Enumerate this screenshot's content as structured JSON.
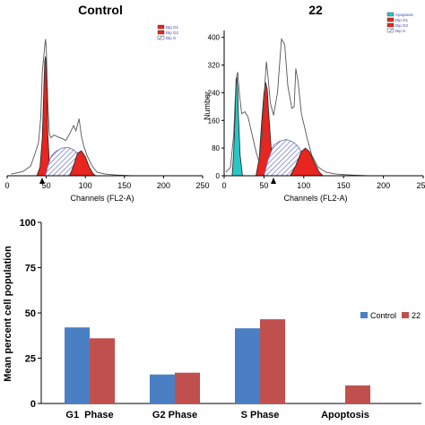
{
  "chart_data": [
    {
      "type": "area",
      "title": "Control",
      "xlabel": "Channels (FL2-A)",
      "ylabel": "",
      "xlim": [
        0,
        250
      ],
      "ylim": [
        0,
        420
      ],
      "x_ticks": [
        "0",
        "50",
        "100",
        "150",
        "200",
        "250"
      ],
      "y_ticks": [],
      "legend": {
        "entries": [
          "Dip G1",
          "Dip G2",
          "Dip S"
        ],
        "position": "top-right"
      },
      "series": [
        {
          "name": "Dip G1",
          "color": "#e8251f",
          "x": [
            38,
            42,
            45,
            47,
            48,
            49,
            50,
            51,
            52,
            54,
            57,
            61
          ],
          "y": [
            0,
            25,
            110,
            260,
            330,
            345,
            320,
            230,
            120,
            35,
            8,
            0
          ]
        },
        {
          "name": "Dip S",
          "color": "#9fa7d6",
          "pattern": "hatch",
          "x": [
            49,
            52,
            56,
            62,
            70,
            78,
            85,
            92,
            98,
            103
          ],
          "y": [
            0,
            28,
            55,
            70,
            80,
            82,
            75,
            60,
            32,
            0
          ]
        },
        {
          "name": "Dip G2",
          "color": "#e8251f",
          "x": [
            80,
            85,
            90,
            95,
            100,
            105,
            110,
            113
          ],
          "y": [
            0,
            30,
            65,
            72,
            55,
            25,
            6,
            0
          ]
        }
      ],
      "histogram": {
        "color": "#555555",
        "x": [
          5,
          20,
          30,
          35,
          40,
          43,
          45,
          47,
          49,
          50,
          52,
          54,
          56,
          60,
          65,
          70,
          75,
          80,
          85,
          88,
          92,
          95,
          98,
          102,
          108,
          115,
          125,
          140,
          160
        ],
        "y": [
          5,
          12,
          28,
          60,
          95,
          170,
          300,
          350,
          395,
          370,
          210,
          120,
          110,
          118,
          112,
          108,
          102,
          122,
          145,
          130,
          165,
          115,
          85,
          60,
          30,
          10,
          5,
          2,
          0
        ]
      }
    },
    {
      "type": "area",
      "title": "22",
      "xlabel": "Channels (FL2-A)",
      "ylabel": "Number",
      "xlim": [
        0,
        250
      ],
      "ylim": [
        0,
        420
      ],
      "x_ticks": [
        "0",
        "50",
        "100",
        "150",
        "200",
        "250"
      ],
      "y_ticks": [
        "0",
        "80",
        "160",
        "240",
        "320",
        "400"
      ],
      "legend": {
        "entries": [
          "Apoptosis",
          "Dip G1",
          "Dip G2",
          "Dip S"
        ],
        "position": "top-right"
      },
      "series": [
        {
          "name": "Apoptosis",
          "color": "#27c7c7",
          "x": [
            10,
            12,
            14,
            15,
            16,
            17,
            18,
            20,
            23
          ],
          "y": [
            0,
            70,
            190,
            265,
            285,
            250,
            170,
            60,
            0
          ]
        },
        {
          "name": "Dip G1",
          "color": "#e8251f",
          "x": [
            40,
            44,
            47,
            50,
            52,
            54,
            56,
            59,
            63,
            67
          ],
          "y": [
            0,
            50,
            150,
            240,
            270,
            250,
            180,
            80,
            20,
            0
          ]
        },
        {
          "name": "Dip S",
          "color": "#9fa7d6",
          "pattern": "hatch",
          "x": [
            50,
            55,
            62,
            70,
            78,
            86,
            93,
            100,
            108
          ],
          "y": [
            0,
            45,
            88,
            100,
            105,
            98,
            85,
            55,
            0
          ]
        },
        {
          "name": "Dip G2",
          "color": "#e8251f",
          "x": [
            83,
            90,
            97,
            102,
            107,
            113,
            119,
            124
          ],
          "y": [
            0,
            30,
            70,
            80,
            70,
            40,
            12,
            0
          ]
        }
      ],
      "histogram": {
        "color": "#555555",
        "x": [
          2,
          8,
          12,
          15,
          17,
          19,
          22,
          26,
          30,
          35,
          40,
          44,
          48,
          51,
          53,
          55,
          58,
          62,
          67,
          72,
          76,
          80,
          85,
          88,
          90,
          93,
          97,
          100,
          104,
          110,
          118,
          128,
          140,
          160,
          180
        ],
        "y": [
          10,
          25,
          120,
          280,
          300,
          240,
          180,
          185,
          170,
          120,
          70,
          40,
          120,
          260,
          330,
          290,
          210,
          175,
          240,
          395,
          380,
          260,
          195,
          200,
          310,
          270,
          180,
          150,
          110,
          60,
          25,
          10,
          5,
          2,
          0
        ]
      }
    },
    {
      "type": "bar",
      "title": "",
      "xlabel": "",
      "ylabel": "Mean percent cell population",
      "ylim": [
        0,
        100
      ],
      "y_ticks": [
        "0",
        "25",
        "50",
        "75",
        "100"
      ],
      "categories": [
        "G1  Phase",
        "G2 Phase",
        "S Phase",
        "Apoptosis"
      ],
      "legend": {
        "position": "right"
      },
      "series": [
        {
          "name": "Control",
          "color": "#4a7fc4",
          "values": [
            42,
            16,
            41.5,
            0
          ]
        },
        {
          "name": "22",
          "color": "#c0504d",
          "values": [
            36,
            17,
            46.5,
            10
          ]
        }
      ]
    }
  ]
}
